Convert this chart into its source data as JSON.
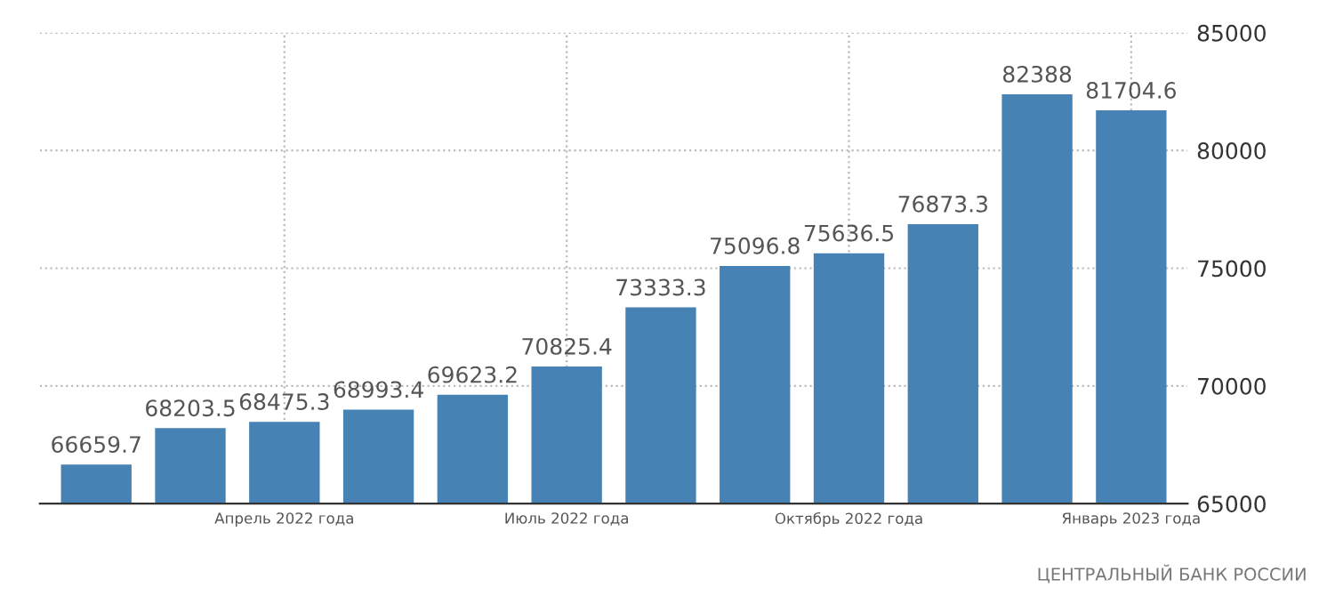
{
  "chart_data": {
    "type": "bar",
    "categories": [
      null,
      null,
      "Апрель 2022 года",
      null,
      null,
      "Июль 2022 года",
      null,
      null,
      "Октябрь 2022 года",
      null,
      null,
      "Январь 2023 года"
    ],
    "values": [
      66659.7,
      68203.5,
      68475.3,
      68993.4,
      69623.2,
      70825.4,
      73333.3,
      75096.8,
      75636.5,
      76873.3,
      82388,
      81704.6
    ],
    "color": "#4682b4",
    "ylim": [
      65000,
      85000
    ],
    "yticks": [
      65000,
      70000,
      75000,
      80000,
      85000
    ],
    "grid": true,
    "data_labels": true,
    "annotations": [
      "ЦЕНТРАЛЬНЫЙ БАНК РОССИИ"
    ]
  }
}
